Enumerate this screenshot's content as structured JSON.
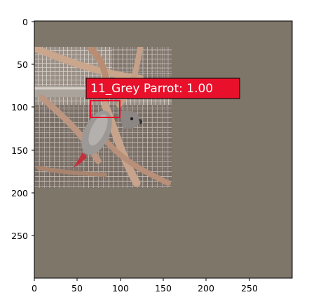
{
  "figure": {
    "background_color": "#7d7669",
    "x_ticks": [
      "0",
      "50",
      "100",
      "150",
      "200",
      "250"
    ],
    "y_ticks": [
      "0",
      "50",
      "100",
      "150",
      "200",
      "250"
    ],
    "x_range": [
      0,
      300
    ],
    "y_range": [
      0,
      300
    ]
  },
  "photo": {
    "subject": "grey parrot in wire cage with wooden perches",
    "extent": {
      "x": [
        0,
        160
      ],
      "y": [
        30,
        193
      ]
    }
  },
  "detection": {
    "label": "11_Grey Parrot: 1.00",
    "box_color": "#e8102a",
    "box": {
      "x": [
        65,
        99
      ],
      "y": [
        91,
        111
      ]
    }
  }
}
